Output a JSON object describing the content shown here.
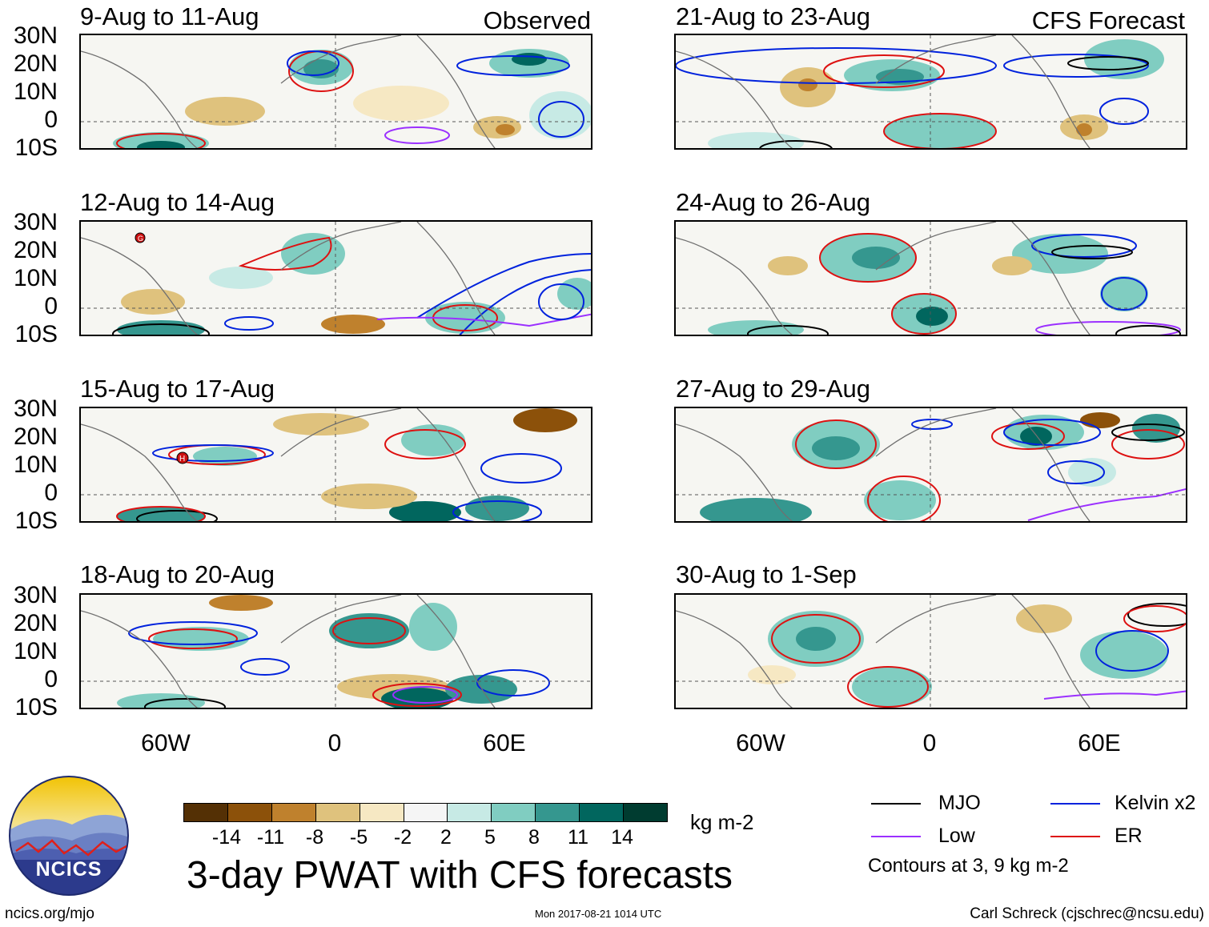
{
  "columns": {
    "left": {
      "heading": "Observed"
    },
    "right": {
      "heading": "CFS Forecast"
    }
  },
  "panels": {
    "left": [
      {
        "title": "9-Aug to 11-Aug"
      },
      {
        "title": "12-Aug to 14-Aug"
      },
      {
        "title": "15-Aug to 17-Aug"
      },
      {
        "title": "18-Aug to 20-Aug"
      }
    ],
    "right": [
      {
        "title": "21-Aug to 23-Aug"
      },
      {
        "title": "24-Aug to 26-Aug"
      },
      {
        "title": "27-Aug to 29-Aug"
      },
      {
        "title": "30-Aug to 1-Sep"
      }
    ]
  },
  "axes": {
    "lat_labels": [
      "30N",
      "20N",
      "10N",
      "0",
      "10S"
    ],
    "lon_labels": [
      "60W",
      "0",
      "60E"
    ]
  },
  "storm_markers": {
    "panel2": "G",
    "panel3": "H"
  },
  "colorbar": {
    "unit": "kg m-2",
    "labels": [
      "-14",
      "-11",
      "-8",
      "-5",
      "-2",
      "2",
      "5",
      "8",
      "11",
      "14"
    ],
    "colors": [
      "#543005",
      "#8c510a",
      "#bf812d",
      "#dfc27d",
      "#f6e8c3",
      "#f5f5f5",
      "#c7eae5",
      "#80cdc1",
      "#35978f",
      "#01665e",
      "#003c30"
    ]
  },
  "legend": {
    "items": [
      {
        "label": "MJO",
        "color": "#000000"
      },
      {
        "label": "Kelvin x2",
        "color": "#0022dd"
      },
      {
        "label": "Low",
        "color": "#9b30ff"
      },
      {
        "label": "ER",
        "color": "#dd1111"
      }
    ],
    "note": "Contours at 3, 9 kg m-2"
  },
  "title": "3-day PWAT with CFS forecasts",
  "footer": {
    "site": "ncics.org/mjo",
    "timestamp": "Mon 2017-08-21 1014 UTC",
    "author": "Carl Schreck (cjschrec@ncsu.edu)"
  },
  "logo": {
    "text": "NCICS"
  }
}
